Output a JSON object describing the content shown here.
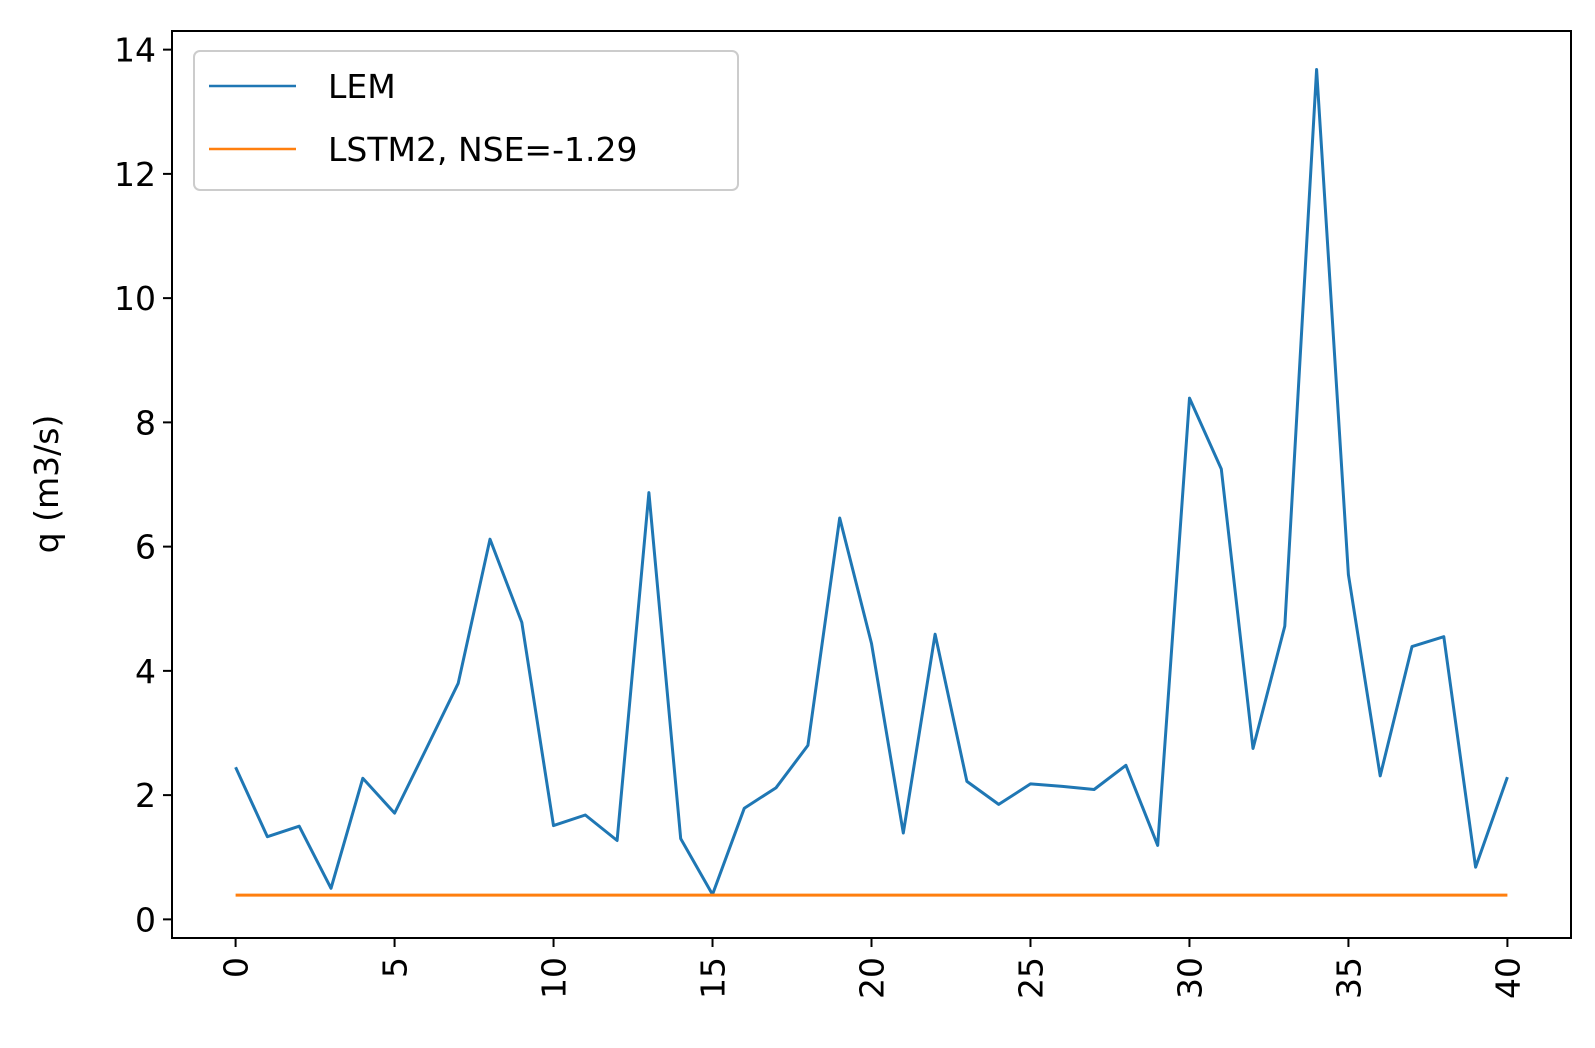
{
  "chart_data": {
    "type": "line",
    "title": "",
    "xlabel": "",
    "ylabel": "q (m3/s)",
    "xlim": [
      -2,
      42
    ],
    "ylim": [
      -0.3,
      14.3
    ],
    "xticks": [
      0,
      5,
      10,
      15,
      20,
      25,
      30,
      35,
      40
    ],
    "yticks": [
      0,
      2,
      4,
      6,
      8,
      10,
      12,
      14
    ],
    "grid": false,
    "legend_position": "top-left",
    "x": [
      0,
      1,
      2,
      3,
      4,
      5,
      6,
      7,
      8,
      9,
      10,
      11,
      12,
      13,
      14,
      15,
      16,
      17,
      18,
      19,
      20,
      21,
      22,
      23,
      24,
      25,
      26,
      27,
      28,
      29,
      30,
      31,
      32,
      33,
      34,
      35,
      36,
      37,
      38,
      39,
      40
    ],
    "series": [
      {
        "name": "LEM",
        "color": "#1f77b4",
        "values": [
          2.45,
          1.33,
          1.5,
          0.5,
          2.27,
          1.71,
          2.75,
          3.8,
          6.12,
          4.78,
          1.51,
          1.68,
          1.27,
          6.87,
          1.3,
          0.4,
          1.79,
          2.12,
          2.8,
          6.46,
          4.44,
          1.39,
          4.59,
          2.22,
          1.85,
          2.18,
          2.14,
          2.09,
          2.48,
          1.19,
          8.39,
          7.25,
          2.75,
          4.72,
          13.68,
          5.55,
          2.31,
          4.39,
          4.55,
          0.84,
          2.29
        ]
      },
      {
        "name": "LSTM2, NSE=-1.29",
        "color": "#ff7f0e",
        "values": [
          0.39,
          0.39,
          0.39,
          0.39,
          0.39,
          0.39,
          0.39,
          0.39,
          0.39,
          0.39,
          0.39,
          0.39,
          0.39,
          0.39,
          0.39,
          0.39,
          0.39,
          0.39,
          0.39,
          0.39,
          0.39,
          0.39,
          0.39,
          0.39,
          0.39,
          0.39,
          0.39,
          0.39,
          0.39,
          0.39,
          0.39,
          0.39,
          0.39,
          0.39,
          0.39,
          0.39,
          0.39,
          0.39,
          0.39,
          0.39,
          0.39
        ]
      }
    ]
  }
}
